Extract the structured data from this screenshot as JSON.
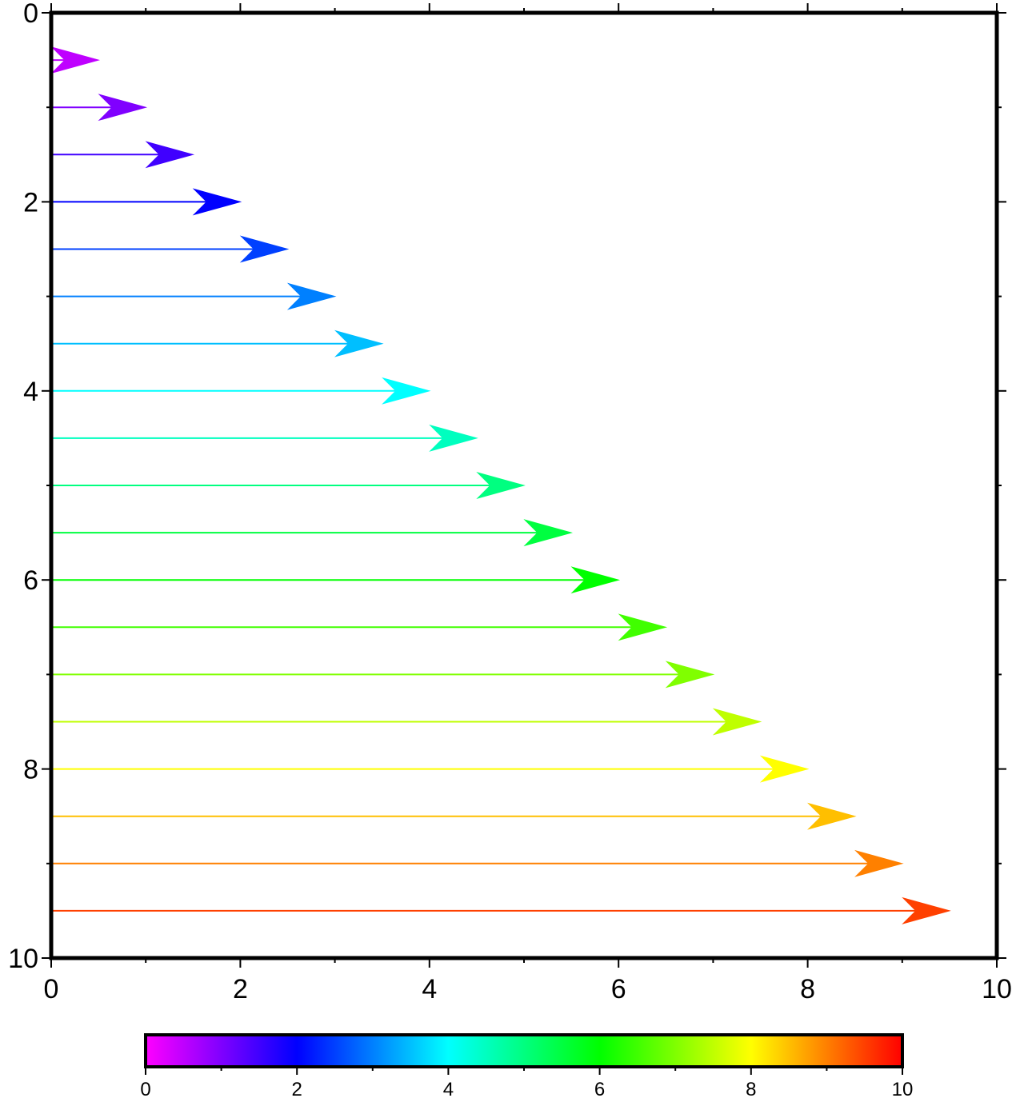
{
  "chart_data": {
    "type": "vector-arrows",
    "title": "",
    "xlabel": "",
    "ylabel": "",
    "xlim": [
      0,
      10
    ],
    "ylim": [
      0,
      10
    ],
    "y_axis_inverted": true,
    "x_ticks": [
      "0",
      "2",
      "4",
      "6",
      "8",
      "10"
    ],
    "y_ticks": [
      "0",
      "2",
      "4",
      "6",
      "8",
      "10"
    ],
    "minor_tick_step": 1,
    "grid": false,
    "arrows": [
      {
        "x0": 0,
        "y": 0.5,
        "x1": 0.5,
        "value": 0.5
      },
      {
        "x0": 0,
        "y": 1.0,
        "x1": 1.0,
        "value": 1.0
      },
      {
        "x0": 0,
        "y": 1.5,
        "x1": 1.5,
        "value": 1.5
      },
      {
        "x0": 0,
        "y": 2.0,
        "x1": 2.0,
        "value": 2.0
      },
      {
        "x0": 0,
        "y": 2.5,
        "x1": 2.5,
        "value": 2.5
      },
      {
        "x0": 0,
        "y": 3.0,
        "x1": 3.0,
        "value": 3.0
      },
      {
        "x0": 0,
        "y": 3.5,
        "x1": 3.5,
        "value": 3.5
      },
      {
        "x0": 0,
        "y": 4.0,
        "x1": 4.0,
        "value": 4.0
      },
      {
        "x0": 0,
        "y": 4.5,
        "x1": 4.5,
        "value": 4.5
      },
      {
        "x0": 0,
        "y": 5.0,
        "x1": 5.0,
        "value": 5.0
      },
      {
        "x0": 0,
        "y": 5.5,
        "x1": 5.5,
        "value": 5.5
      },
      {
        "x0": 0,
        "y": 6.0,
        "x1": 6.0,
        "value": 6.0
      },
      {
        "x0": 0,
        "y": 6.5,
        "x1": 6.5,
        "value": 6.5
      },
      {
        "x0": 0,
        "y": 7.0,
        "x1": 7.0,
        "value": 7.0
      },
      {
        "x0": 0,
        "y": 7.5,
        "x1": 7.5,
        "value": 7.5
      },
      {
        "x0": 0,
        "y": 8.0,
        "x1": 8.0,
        "value": 8.0
      },
      {
        "x0": 0,
        "y": 8.5,
        "x1": 8.5,
        "value": 8.5
      },
      {
        "x0": 0,
        "y": 9.0,
        "x1": 9.0,
        "value": 9.0
      },
      {
        "x0": 0,
        "y": 9.5,
        "x1": 9.5,
        "value": 9.5
      }
    ],
    "colorbar": {
      "range": [
        0,
        10
      ],
      "ticks": [
        "0",
        "2",
        "4",
        "6",
        "8",
        "10"
      ],
      "minor_tick_step": 1,
      "placement": "bottom",
      "stops": [
        {
          "value": 0,
          "color": "#ff00ff"
        },
        {
          "value": 2,
          "color": "#0000ff"
        },
        {
          "value": 4,
          "color": "#00ffff"
        },
        {
          "value": 6,
          "color": "#00ff00"
        },
        {
          "value": 8,
          "color": "#ffff00"
        },
        {
          "value": 10,
          "color": "#ff0000"
        }
      ]
    }
  }
}
